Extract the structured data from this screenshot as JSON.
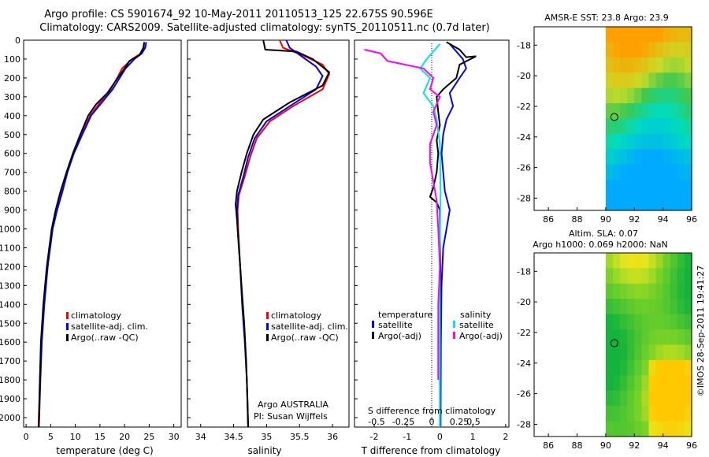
{
  "header": {
    "line1": "Argo profile: CS 5901674_92 10-May-2011 20110513_125 22.675S 90.596E",
    "line2": "Climatology: CARS2009. Satellite-adjusted climatology: synTS_20110511.nc (0.7d later)"
  },
  "colors": {
    "clim": "#ff0000",
    "sat": "#0000ff",
    "argo": "#000000",
    "sal_sat": "#00e5e5",
    "sal_argo": "#ff00ff"
  },
  "chart_data": [
    {
      "type": "line",
      "panel": "temperature",
      "title": "",
      "xlabel": "temperature (deg C)",
      "ylabel": "",
      "xlim": [
        -0.5,
        31.5
      ],
      "ylim": [
        2050,
        0
      ],
      "xticks": [
        "0",
        "5",
        "10",
        "15",
        "20",
        "25",
        "30"
      ],
      "yticks": [
        "0",
        "100",
        "200",
        "300",
        "400",
        "500",
        "600",
        "700",
        "800",
        "900",
        "1000",
        "1100",
        "1200",
        "1300",
        "1400",
        "1500",
        "1600",
        "1700",
        "1800",
        "1900",
        "2000"
      ],
      "legend": [
        "climatology",
        "satellite-adj. clim.",
        "Argo(..raw -QC)"
      ],
      "series": [
        {
          "name": "climatology",
          "color": "#ff0000",
          "points": [
            [
              24.0,
              10
            ],
            [
              23.9,
              40
            ],
            [
              23.3,
              70
            ],
            [
              21.5,
              100
            ],
            [
              19.5,
              150
            ],
            [
              18.5,
              200
            ],
            [
              17.2,
              260
            ],
            [
              15.0,
              330
            ],
            [
              13.0,
              400
            ],
            [
              11.2,
              500
            ],
            [
              9.6,
              600
            ],
            [
              8.3,
              700
            ],
            [
              7.3,
              800
            ],
            [
              6.2,
              900
            ],
            [
              5.3,
              1000
            ],
            [
              4.3,
              1200
            ],
            [
              3.6,
              1400
            ],
            [
              3.1,
              1600
            ],
            [
              2.8,
              1800
            ],
            [
              2.5,
              2050
            ]
          ]
        },
        {
          "name": "satellite-adj. clim.",
          "color": "#0000ff",
          "points": [
            [
              24.4,
              10
            ],
            [
              24.2,
              40
            ],
            [
              23.5,
              70
            ],
            [
              22.0,
              100
            ],
            [
              20.2,
              150
            ],
            [
              19.0,
              200
            ],
            [
              17.6,
              260
            ],
            [
              15.4,
              330
            ],
            [
              13.2,
              400
            ],
            [
              11.4,
              500
            ],
            [
              9.7,
              600
            ],
            [
              8.4,
              700
            ],
            [
              7.4,
              800
            ],
            [
              6.3,
              900
            ],
            [
              5.4,
              1000
            ],
            [
              4.4,
              1200
            ],
            [
              3.7,
              1400
            ],
            [
              3.2,
              1600
            ],
            [
              2.9,
              1800
            ],
            [
              2.6,
              2050
            ]
          ]
        },
        {
          "name": "Argo(..raw -QC)",
          "color": "#000000",
          "points": [
            [
              24.0,
              10
            ],
            [
              23.8,
              40
            ],
            [
              23.0,
              80
            ],
            [
              21.0,
              110
            ],
            [
              20.0,
              150
            ],
            [
              18.6,
              200
            ],
            [
              16.5,
              280
            ],
            [
              14.2,
              340
            ],
            [
              12.6,
              400
            ],
            [
              11.0,
              500
            ],
            [
              9.5,
              600
            ],
            [
              8.2,
              700
            ],
            [
              7.0,
              800
            ],
            [
              6.0,
              900
            ],
            [
              5.2,
              1000
            ],
            [
              4.2,
              1200
            ],
            [
              3.5,
              1400
            ],
            [
              3.0,
              1600
            ],
            [
              2.8,
              1800
            ],
            [
              2.6,
              2050
            ]
          ]
        }
      ]
    },
    {
      "type": "line",
      "panel": "salinity",
      "xlabel": "salinity",
      "xlim": [
        33.8,
        36.25
      ],
      "ylim": [
        2050,
        0
      ],
      "xticks": [
        "34",
        "34.5",
        "35",
        "35.5",
        "36"
      ],
      "legend": [
        "climatology",
        "satellite-adj. clim.",
        "Argo(..raw -QC)"
      ],
      "annotations": [
        "Argo AUSTRALIA",
        "PI: Susan Wijffels"
      ],
      "series": [
        {
          "name": "climatology",
          "color": "#ff0000",
          "points": [
            [
              35.2,
              0
            ],
            [
              35.25,
              40
            ],
            [
              35.55,
              80
            ],
            [
              35.85,
              130
            ],
            [
              35.95,
              180
            ],
            [
              35.85,
              260
            ],
            [
              35.4,
              350
            ],
            [
              35.05,
              430
            ],
            [
              34.85,
              520
            ],
            [
              34.75,
              620
            ],
            [
              34.67,
              720
            ],
            [
              34.58,
              820
            ],
            [
              34.56,
              900
            ],
            [
              34.57,
              1000
            ],
            [
              34.6,
              1200
            ],
            [
              34.63,
              1400
            ],
            [
              34.67,
              1600
            ],
            [
              34.7,
              1800
            ],
            [
              34.72,
              2050
            ]
          ]
        },
        {
          "name": "satellite-adj. clim.",
          "color": "#0000ff",
          "points": [
            [
              35.3,
              0
            ],
            [
              35.35,
              40
            ],
            [
              35.55,
              90
            ],
            [
              35.75,
              140
            ],
            [
              35.85,
              190
            ],
            [
              35.75,
              260
            ],
            [
              35.35,
              350
            ],
            [
              35.0,
              430
            ],
            [
              34.82,
              520
            ],
            [
              34.72,
              620
            ],
            [
              34.65,
              720
            ],
            [
              34.57,
              820
            ],
            [
              34.55,
              900
            ],
            [
              34.56,
              1000
            ],
            [
              34.6,
              1200
            ],
            [
              34.63,
              1400
            ],
            [
              34.67,
              1600
            ],
            [
              34.7,
              1800
            ],
            [
              34.72,
              2050
            ]
          ]
        },
        {
          "name": "Argo(..raw -QC)",
          "color": "#000000",
          "points": [
            [
              34.95,
              0
            ],
            [
              34.98,
              50
            ],
            [
              35.45,
              60
            ],
            [
              35.7,
              100
            ],
            [
              35.95,
              170
            ],
            [
              35.85,
              240
            ],
            [
              35.35,
              330
            ],
            [
              34.95,
              420
            ],
            [
              34.8,
              500
            ],
            [
              34.7,
              600
            ],
            [
              34.62,
              700
            ],
            [
              34.55,
              800
            ],
            [
              34.53,
              870
            ],
            [
              34.55,
              950
            ],
            [
              34.58,
              1100
            ],
            [
              34.62,
              1300
            ],
            [
              34.66,
              1500
            ],
            [
              34.69,
              1700
            ],
            [
              34.71,
              1900
            ],
            [
              34.72,
              2050
            ]
          ]
        }
      ]
    },
    {
      "type": "line",
      "panel": "difference",
      "xlabel": "T difference from climatology",
      "xlabel_top": "S difference from climatology",
      "xlim": [
        -2.6,
        2.1
      ],
      "ylim": [
        2050,
        0
      ],
      "xticks": [
        "-2",
        "-1",
        "0",
        "1",
        "2"
      ],
      "xticks_s": [
        "-0.5",
        "-0.25",
        "0",
        "0.25",
        "0.5"
      ],
      "legend_groups": [
        "temperature",
        "salinity"
      ],
      "legend": [
        "satellite",
        "Argo(-adj)",
        "satellite",
        "Argo(-adj)"
      ],
      "series": [
        {
          "name": "temperature satellite",
          "color": "#0000ff",
          "points": [
            [
              0.3,
              20
            ],
            [
              0.5,
              60
            ],
            [
              0.7,
              100
            ],
            [
              0.8,
              150
            ],
            [
              0.6,
              200
            ],
            [
              0.3,
              280
            ],
            [
              0.4,
              350
            ],
            [
              0.2,
              420
            ],
            [
              0.1,
              500
            ],
            [
              0.05,
              600
            ],
            [
              0.1,
              700
            ],
            [
              0.15,
              800
            ],
            [
              0.3,
              900
            ],
            [
              0.2,
              1000
            ],
            [
              0.1,
              1100
            ],
            [
              0.05,
              1300
            ],
            [
              0.03,
              1600
            ],
            [
              0.02,
              2050
            ]
          ]
        },
        {
          "name": "temperature Argo(-adj)",
          "color": "#000000",
          "points": [
            [
              0.2,
              10
            ],
            [
              0.6,
              50
            ],
            [
              0.8,
              90
            ],
            [
              1.1,
              85
            ],
            [
              0.6,
              130
            ],
            [
              0.5,
              200
            ],
            [
              0.1,
              260
            ],
            [
              -0.1,
              300
            ],
            [
              -0.05,
              380
            ],
            [
              0.0,
              450
            ],
            [
              -0.1,
              530
            ],
            [
              -0.05,
              600
            ],
            [
              -0.1,
              700
            ],
            [
              -0.2,
              780
            ],
            [
              -0.3,
              830
            ],
            [
              -0.1,
              860
            ],
            [
              0.0,
              900
            ],
            [
              0.0,
              1000
            ],
            [
              0.02,
              1300
            ],
            [
              0.0,
              1600
            ],
            [
              0.0,
              2050
            ]
          ]
        },
        {
          "name": "salinity satellite",
          "color": "#00e5e5",
          "points": [
            [
              0.0,
              20
            ],
            [
              -0.4,
              100
            ],
            [
              -0.6,
              150
            ],
            [
              -0.3,
              200
            ],
            [
              -0.5,
              280
            ],
            [
              -0.2,
              350
            ],
            [
              -0.1,
              420
            ],
            [
              0.0,
              550
            ],
            [
              0.02,
              800
            ],
            [
              0.0,
              1100
            ],
            [
              0.0,
              1500
            ],
            [
              0.0,
              2050
            ]
          ]
        },
        {
          "name": "salinity Argo(-adj)",
          "color": "#ff00ff",
          "points": [
            [
              -2.3,
              50
            ],
            [
              -1.8,
              70
            ],
            [
              -1.6,
              110
            ],
            [
              -0.5,
              150
            ],
            [
              -0.2,
              200
            ],
            [
              -0.3,
              260
            ],
            [
              0.0,
              300
            ],
            [
              -0.2,
              380
            ],
            [
              -0.1,
              450
            ],
            [
              -0.3,
              550
            ],
            [
              -0.3,
              650
            ],
            [
              -0.2,
              750
            ],
            [
              -0.1,
              850
            ],
            [
              -0.05,
              1000
            ],
            [
              0.0,
              1200
            ],
            [
              -0.05,
              1400
            ],
            [
              -0.05,
              1700
            ],
            [
              -0.05,
              1800
            ]
          ]
        }
      ]
    },
    {
      "type": "heatmap",
      "panel": "sst-map",
      "title": "AMSR-E SST: 23.8 Argo: 23.9",
      "xticks": [
        "86",
        "88",
        "90",
        "92",
        "94",
        "96"
      ],
      "yticks": [
        "-18",
        "-20",
        "-22",
        "-24",
        "-26",
        "-28"
      ],
      "xlim": [
        85,
        96
      ],
      "ylim": [
        -28.8,
        -16.8
      ],
      "data_xlim": [
        90,
        96
      ],
      "marker": [
        90.6,
        -22.7
      ],
      "grid_rows": 12,
      "grid_cols": 12
    },
    {
      "type": "heatmap",
      "panel": "sla-map",
      "title": "Altim. SLA: 0.07",
      "subtitle": "Argo h1000: 0.069 h2000: NaN",
      "xticks": [
        "86",
        "88",
        "90",
        "92",
        "94",
        "96"
      ],
      "yticks": [
        "-18",
        "-20",
        "-22",
        "-24",
        "-26",
        "-28"
      ],
      "xlim": [
        85,
        96
      ],
      "ylim": [
        -28.8,
        -16.8
      ],
      "data_xlim": [
        90,
        96
      ],
      "marker": [
        90.6,
        -22.7
      ],
      "grid_rows": 12,
      "grid_cols": 12
    }
  ],
  "footer": {
    "stamp": "©IMOS 28-Sep-2011 19:41:27"
  }
}
